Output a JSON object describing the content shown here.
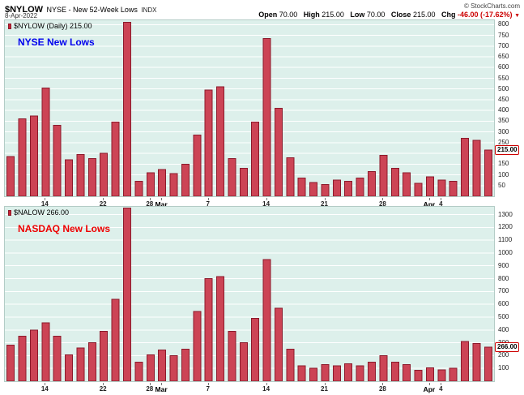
{
  "header": {
    "symbol": "$NYLOW",
    "description": "NYSE - New 52-Week Lows",
    "exchange": "INDX",
    "credit": "© StockCharts.com",
    "date": "8-Apr-2022",
    "quote": {
      "open_label": "Open",
      "open_value": "70.00",
      "high_label": "High",
      "high_value": "215.00",
      "low_label": "Low",
      "low_value": "70.00",
      "close_label": "Close",
      "close_value": "215.00",
      "chg_label": "Chg",
      "chg_value": "-46.00 (-17.62%)",
      "chg_arrow": "▼"
    }
  },
  "chart_data": [
    {
      "type": "bar",
      "title": "$NYLOW (Daily) 215.00",
      "label": "NYSE New Lows",
      "label_color": "#0000ee",
      "bar_color": "#cc4455",
      "bar_border": "#8b1a2b",
      "last_value": 215,
      "last_value_label": "215.00",
      "ylim": [
        0,
        820
      ],
      "yticks": [
        50,
        100,
        150,
        200,
        250,
        300,
        350,
        400,
        450,
        500,
        550,
        600,
        650,
        700,
        750,
        800
      ],
      "x_ticks": [
        {
          "i": 3,
          "label": "14"
        },
        {
          "i": 8,
          "label": "22"
        },
        {
          "i": 12,
          "label": "28"
        },
        {
          "i": 13,
          "label": "Mar",
          "bold": true
        },
        {
          "i": 17,
          "label": "7"
        },
        {
          "i": 22,
          "label": "14"
        },
        {
          "i": 27,
          "label": "21"
        },
        {
          "i": 32,
          "label": "28"
        },
        {
          "i": 36,
          "label": "Apr",
          "bold": true
        },
        {
          "i": 37,
          "label": "4"
        }
      ],
      "values": [
        185,
        360,
        375,
        505,
        330,
        170,
        195,
        175,
        200,
        345,
        810,
        70,
        110,
        125,
        105,
        150,
        285,
        495,
        510,
        175,
        130,
        345,
        735,
        410,
        180,
        85,
        65,
        55,
        75,
        70,
        85,
        115,
        190,
        130,
        110,
        60,
        90,
        75,
        70,
        270,
        261,
        215
      ]
    },
    {
      "type": "bar",
      "title": "$NALOW 266.00",
      "label": "NASDAQ New Lows",
      "label_color": "#ee0000",
      "bar_color": "#cc4455",
      "bar_border": "#8b1a2b",
      "last_value": 266,
      "last_value_label": "266.00",
      "ylim": [
        0,
        1360
      ],
      "yticks": [
        100,
        200,
        300,
        400,
        500,
        600,
        700,
        800,
        900,
        1000,
        1100,
        1200,
        1300
      ],
      "x_ticks": [
        {
          "i": 3,
          "label": "14"
        },
        {
          "i": 8,
          "label": "22"
        },
        {
          "i": 12,
          "label": "28"
        },
        {
          "i": 13,
          "label": "Mar",
          "bold": true
        },
        {
          "i": 17,
          "label": "7"
        },
        {
          "i": 22,
          "label": "14"
        },
        {
          "i": 27,
          "label": "21"
        },
        {
          "i": 32,
          "label": "28"
        },
        {
          "i": 36,
          "label": "Apr",
          "bold": true
        },
        {
          "i": 37,
          "label": "4"
        }
      ],
      "values": [
        280,
        350,
        400,
        455,
        350,
        205,
        260,
        300,
        390,
        640,
        1350,
        150,
        205,
        245,
        200,
        250,
        545,
        800,
        815,
        390,
        300,
        490,
        950,
        570,
        250,
        120,
        100,
        130,
        120,
        135,
        120,
        150,
        200,
        150,
        130,
        85,
        105,
        90,
        100,
        310,
        295,
        266
      ]
    }
  ]
}
